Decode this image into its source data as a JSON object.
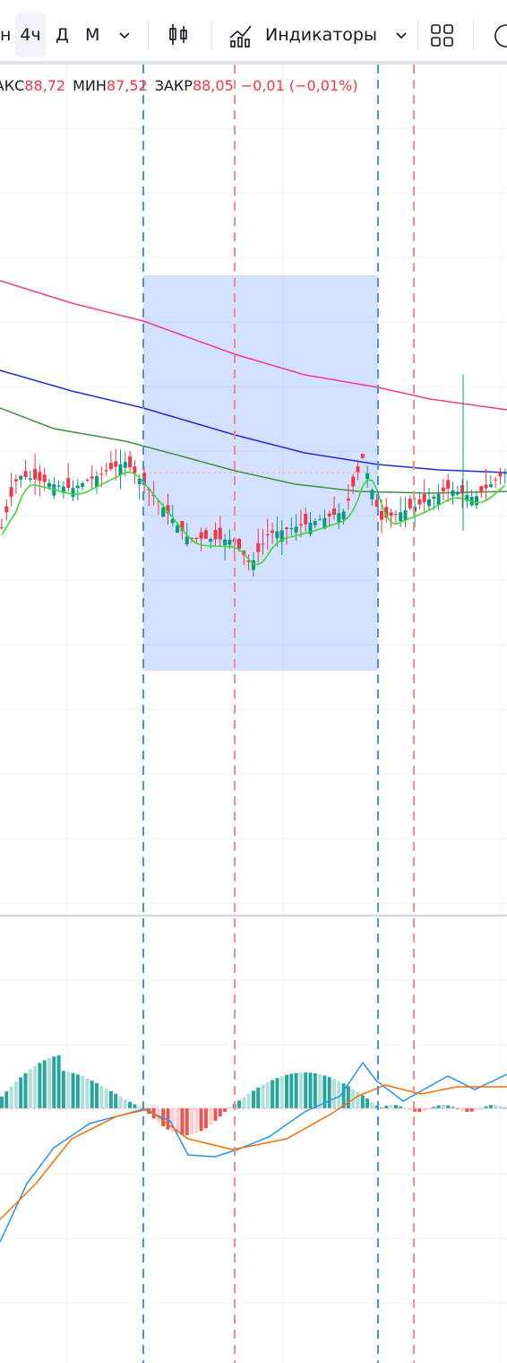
{
  "toolbar": {
    "items": [
      "н",
      "4ч",
      "Д",
      "М"
    ],
    "indicators": "Индикаторы"
  },
  "legend": {
    "high_label": "МАКС",
    "high": "88,72",
    "low_label": "МИН",
    "low": "87,52",
    "close_label": "ЗАКР",
    "close": "88,05",
    "change": "−0,01 (−0,01%)"
  }
}
